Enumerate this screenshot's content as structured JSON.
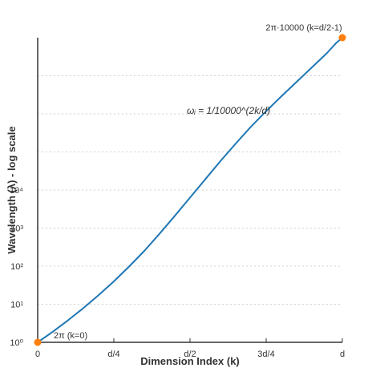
{
  "chart_data": {
    "type": "line",
    "title": "",
    "xlabel": "Dimension Index (k)",
    "ylabel": "Wavelength (λ) - log scale",
    "x_ticks": [
      {
        "value": 0,
        "label": "0"
      },
      {
        "value": 0.25,
        "label": "d/4"
      },
      {
        "value": 0.5,
        "label": "d/2"
      },
      {
        "value": 0.75,
        "label": "3d/4"
      },
      {
        "value": 1,
        "label": "d"
      }
    ],
    "y_ticks": [
      {
        "value": 0,
        "label": "10⁰"
      },
      {
        "value": 1,
        "label": "10¹"
      },
      {
        "value": 2,
        "label": "10²"
      },
      {
        "value": 3,
        "label": "10³"
      },
      {
        "value": 4,
        "label": "10⁴"
      }
    ],
    "xlim": [
      0,
      1
    ],
    "ylim": [
      0,
      8
    ],
    "y_scale": "log",
    "grid": "horizontal dotted",
    "series": [
      {
        "color": "#1f77b4",
        "x": [
          0,
          0.05,
          0.1,
          0.15,
          0.2,
          0.25,
          0.3,
          0.35,
          0.4,
          0.45,
          0.5,
          0.55,
          0.6,
          0.65,
          0.7,
          0.75,
          0.8,
          0.85,
          0.9,
          0.95,
          0.98,
          1
        ],
        "y": [
          0,
          0.28,
          0.58,
          0.9,
          1.24,
          1.6,
          1.99,
          2.4,
          2.85,
          3.32,
          3.8,
          4.28,
          4.76,
          5.22,
          5.66,
          6.07,
          6.46,
          6.84,
          7.22,
          7.6,
          7.86,
          8
        ]
      }
    ],
    "endpoints": {
      "color": "#ff7f0e",
      "points": [
        {
          "x": 0,
          "y": 0,
          "label": "2π (k=0)"
        },
        {
          "x": 1,
          "y": 8,
          "label": "2π·10000 (k=d/2-1)"
        }
      ]
    },
    "formula": "ωᵢ = 1/10000^(2k/d)"
  }
}
